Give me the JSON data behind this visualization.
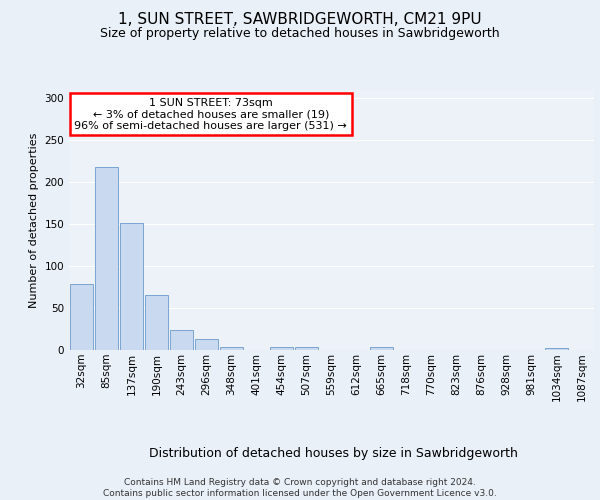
{
  "title1": "1, SUN STREET, SAWBRIDGEWORTH, CM21 9PU",
  "title2": "Size of property relative to detached houses in Sawbridgeworth",
  "xlabel": "Distribution of detached houses by size in Sawbridgeworth",
  "ylabel": "Number of detached properties",
  "categories": [
    "32sqm",
    "85sqm",
    "137sqm",
    "190sqm",
    "243sqm",
    "296sqm",
    "348sqm",
    "401sqm",
    "454sqm",
    "507sqm",
    "559sqm",
    "612sqm",
    "665sqm",
    "718sqm",
    "770sqm",
    "823sqm",
    "876sqm",
    "928sqm",
    "981sqm",
    "1034sqm",
    "1087sqm"
  ],
  "values": [
    79,
    218,
    152,
    66,
    24,
    13,
    3,
    0,
    4,
    4,
    0,
    0,
    3,
    0,
    0,
    0,
    0,
    0,
    0,
    2,
    0
  ],
  "bar_color": "#c9d9f0",
  "bar_edge_color": "#7aa5d0",
  "annotation_line1": "1 SUN STREET: 73sqm",
  "annotation_line2": "← 3% of detached houses are smaller (19)",
  "annotation_line3": "96% of semi-detached houses are larger (531) →",
  "annotation_box_color": "white",
  "annotation_box_edge_color": "red",
  "ylim": [
    0,
    310
  ],
  "yticks": [
    0,
    50,
    100,
    150,
    200,
    250,
    300
  ],
  "footer_text": "Contains HM Land Registry data © Crown copyright and database right 2024.\nContains public sector information licensed under the Open Government Licence v3.0.",
  "background_color": "#eaf0f8",
  "plot_background_color": "#edf2f9",
  "grid_color": "white",
  "title1_fontsize": 11,
  "title2_fontsize": 9,
  "xlabel_fontsize": 9,
  "ylabel_fontsize": 8,
  "tick_fontsize": 7.5,
  "footer_fontsize": 6.5,
  "annotation_fontsize": 8
}
